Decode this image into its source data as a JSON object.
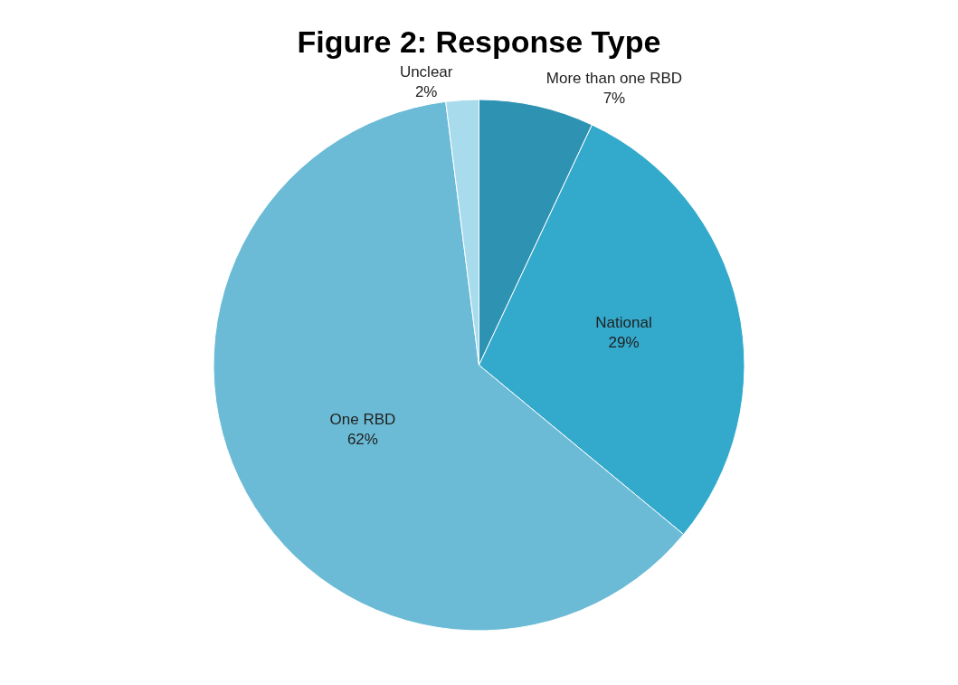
{
  "chart_data": {
    "type": "pie",
    "title": "Figure 2: Response Type",
    "categories": [
      "More than one RBD",
      "National",
      "One RBD",
      "Unclear"
    ],
    "values": [
      7,
      29,
      62,
      2
    ],
    "value_labels": [
      "7%",
      "29%",
      "62%",
      "2%"
    ],
    "colors": [
      "#2e93b2",
      "#33a9cc",
      "#6bbbd6",
      "#a8dcec"
    ],
    "legend": false
  }
}
